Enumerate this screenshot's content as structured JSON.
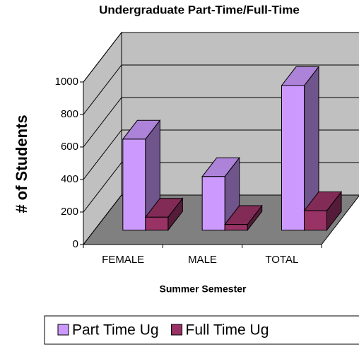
{
  "chart_data": {
    "type": "bar3d",
    "title": "Undergraduate Part-Time/Full-Time",
    "x_label": "Summer Semester",
    "y_label": "# of Students",
    "categories": [
      "FEMALE",
      "MALE",
      "TOTAL"
    ],
    "series": [
      {
        "name": "Part Time Ug",
        "color": "#cc99ff",
        "values": [
          560,
          330,
          890
        ]
      },
      {
        "name": "Full Time Ug",
        "color": "#993366",
        "values": [
          80,
          35,
          120
        ]
      }
    ],
    "ylim": [
      0,
      1000
    ],
    "yticks": [
      0,
      200,
      400,
      600,
      800,
      1000
    ],
    "grid": true,
    "legend": "bottom"
  }
}
